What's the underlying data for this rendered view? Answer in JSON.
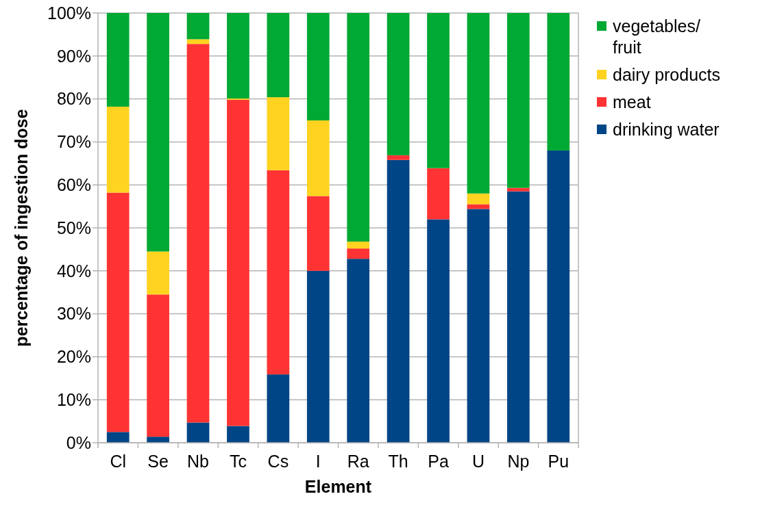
{
  "chart_data": {
    "type": "bar",
    "stacked": true,
    "xlabel": "Element",
    "ylabel": "percentage of ingestion dose",
    "categories": [
      "Cl",
      "Se",
      "Nb",
      "Tc",
      "Cs",
      "I",
      "Ra",
      "Th",
      "Pa",
      "U",
      "Np",
      "Pu"
    ],
    "series": [
      {
        "name": "drinking water",
        "color": "#004586",
        "values": [
          2.5,
          1.4,
          4.7,
          3.9,
          15.9,
          40.0,
          42.8,
          65.8,
          52.0,
          54.4,
          58.5,
          68.0
        ]
      },
      {
        "name": "meat",
        "color": "#ff3333",
        "values": [
          55.7,
          33.1,
          88.1,
          75.9,
          47.5,
          17.4,
          2.4,
          1.1,
          11.9,
          1.1,
          0.8,
          0
        ]
      },
      {
        "name": "dairy products",
        "color": "#ffd320",
        "values": [
          20.0,
          10.0,
          1.1,
          0.3,
          17.0,
          17.6,
          1.6,
          0,
          0,
          2.5,
          0,
          0
        ]
      },
      {
        "name": "vegetables/fruit",
        "color": "#00a933",
        "values": [
          21.8,
          55.5,
          6.1,
          19.9,
          19.6,
          25.0,
          53.2,
          33.1,
          36.1,
          42.0,
          40.7,
          32.0
        ]
      }
    ],
    "ylim": [
      0,
      100
    ],
    "yticks": [
      {
        "value": 0,
        "label": "0%"
      },
      {
        "value": 10,
        "label": "10%"
      },
      {
        "value": 20,
        "label": "20%"
      },
      {
        "value": 30,
        "label": "30%"
      },
      {
        "value": 40,
        "label": "40%"
      },
      {
        "value": 50,
        "label": "50%"
      },
      {
        "value": 60,
        "label": "60%"
      },
      {
        "value": 70,
        "label": "70%"
      },
      {
        "value": 80,
        "label": "80%"
      },
      {
        "value": 90,
        "label": "90%"
      },
      {
        "value": 100,
        "label": "100%"
      }
    ],
    "grid": "y",
    "legend": "right"
  }
}
